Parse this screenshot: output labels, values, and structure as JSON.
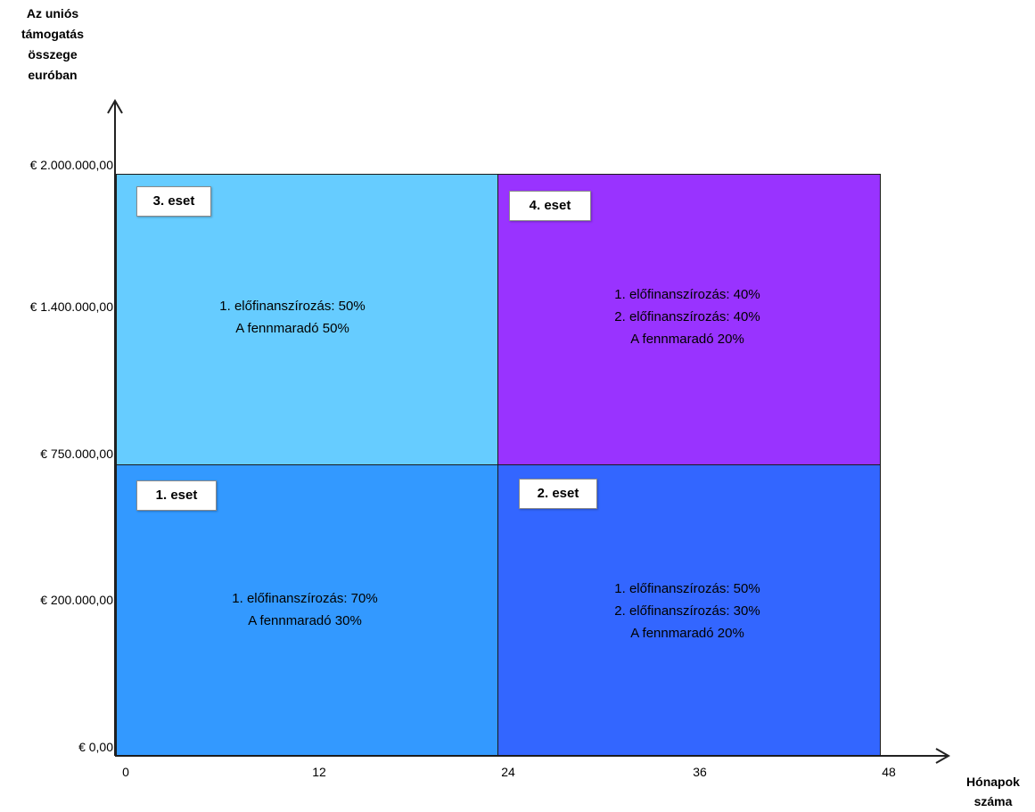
{
  "y_axis_title": [
    "Az uniós",
    "támogatás",
    "összege",
    "euróban"
  ],
  "x_axis_title": [
    "Hónapok",
    "száma"
  ],
  "y_ticks": [
    "€ 2.000.000,00",
    "€ 1.400.000,00",
    "€ 750.000,00",
    "€ 200.000,00",
    "€ 0,00"
  ],
  "x_ticks": [
    "0",
    "12",
    "24",
    "36",
    "48"
  ],
  "colors": {
    "case1": "#3399ff",
    "case2": "#3366ff",
    "case3": "#66ccff",
    "case4": "#9933ff"
  },
  "cases": {
    "case1": {
      "label": "1. eset",
      "lines": [
        "1.  előfinanszírozás: 70%",
        "A fennmaradó 30%"
      ]
    },
    "case2": {
      "label": "2. eset",
      "lines": [
        "1. előfinanszírozás: 50%",
        "2. előfinanszírozás: 30%",
        "A fennmaradó 20%"
      ]
    },
    "case3": {
      "label": "3. eset",
      "lines": [
        "1. előfinanszírozás: 50%",
        "A fennmaradó 50%"
      ]
    },
    "case4": {
      "label": "4. eset",
      "lines": [
        "1. előfinanszírozás: 40%",
        "2. előfinanszírozás: 40%",
        "A fennmaradó 20%"
      ]
    }
  }
}
